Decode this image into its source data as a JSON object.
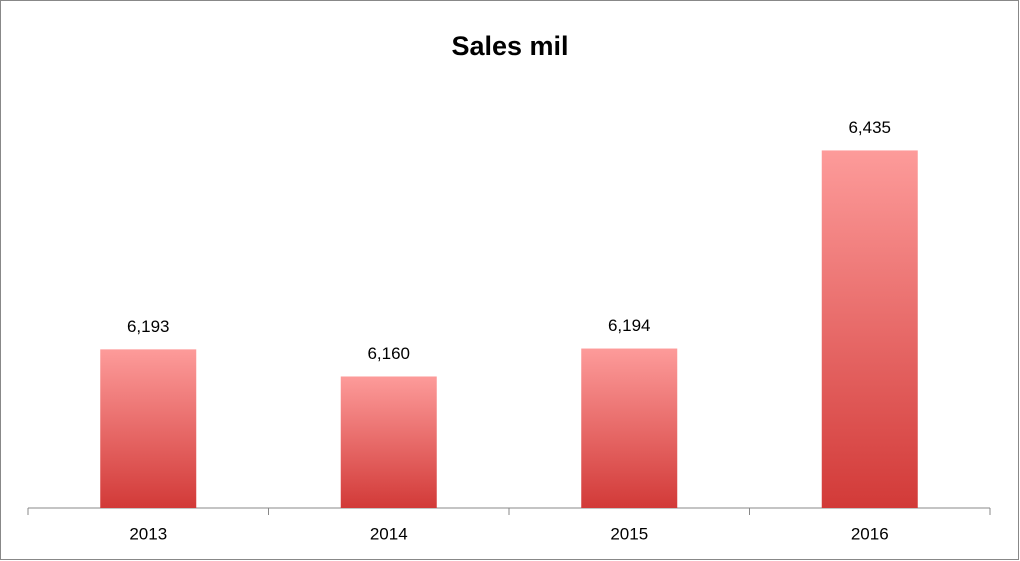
{
  "chart_data": {
    "type": "bar",
    "title": "Sales mil",
    "categories": [
      "2013",
      "2014",
      "2015",
      "2016"
    ],
    "values": [
      6193,
      6160,
      6194,
      6435
    ],
    "value_labels": [
      "6,193",
      "6,160",
      "6,194",
      "6,435"
    ],
    "gradient": [
      "#fd9b9a",
      "#d23a38"
    ],
    "ylim": [
      6000,
      6500
    ]
  }
}
